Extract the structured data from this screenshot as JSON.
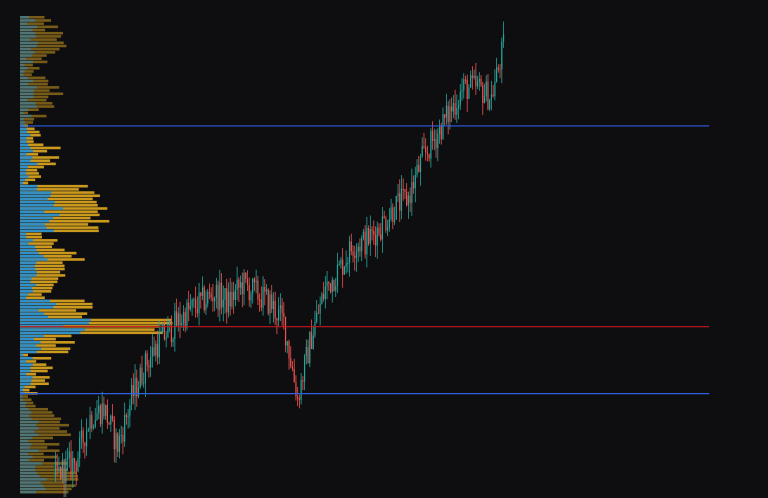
{
  "chart_data": {
    "type": "candlestick",
    "title": "",
    "xlabel": "",
    "ylabel": "",
    "grid": false,
    "ylim": [
      0,
      100
    ],
    "xlim": [
      0,
      100
    ],
    "colors": {
      "background": "#0e0e10",
      "up": "#26a69a",
      "down": "#ef5350",
      "profile_value_area": "#2a8fd0",
      "profile_other": "#e0a820",
      "value_area_line": "#2f5fe0",
      "poc_line": "#c0181e"
    },
    "price_path": [
      [
        5,
        4
      ],
      [
        8,
        7
      ],
      [
        10,
        16
      ],
      [
        12,
        18
      ],
      [
        14,
        10
      ],
      [
        16,
        20
      ],
      [
        18,
        27
      ],
      [
        20,
        32
      ],
      [
        22,
        35
      ],
      [
        24,
        38
      ],
      [
        26,
        40
      ],
      [
        28,
        42
      ],
      [
        30,
        40
      ],
      [
        32,
        44
      ],
      [
        34,
        42
      ],
      [
        36,
        40
      ],
      [
        38,
        36
      ],
      [
        40,
        20
      ],
      [
        42,
        33
      ],
      [
        44,
        43
      ],
      [
        46,
        47
      ],
      [
        48,
        52
      ],
      [
        50,
        53
      ],
      [
        52,
        56
      ],
      [
        54,
        60
      ],
      [
        56,
        62
      ],
      [
        58,
        70
      ],
      [
        60,
        75
      ],
      [
        62,
        80
      ],
      [
        64,
        85
      ],
      [
        66,
        85
      ],
      [
        68,
        83
      ],
      [
        70,
        95
      ]
    ],
    "volume_profile_levels": 150,
    "value_area_high": 77,
    "value_area_low": 21,
    "poc": 35
  }
}
